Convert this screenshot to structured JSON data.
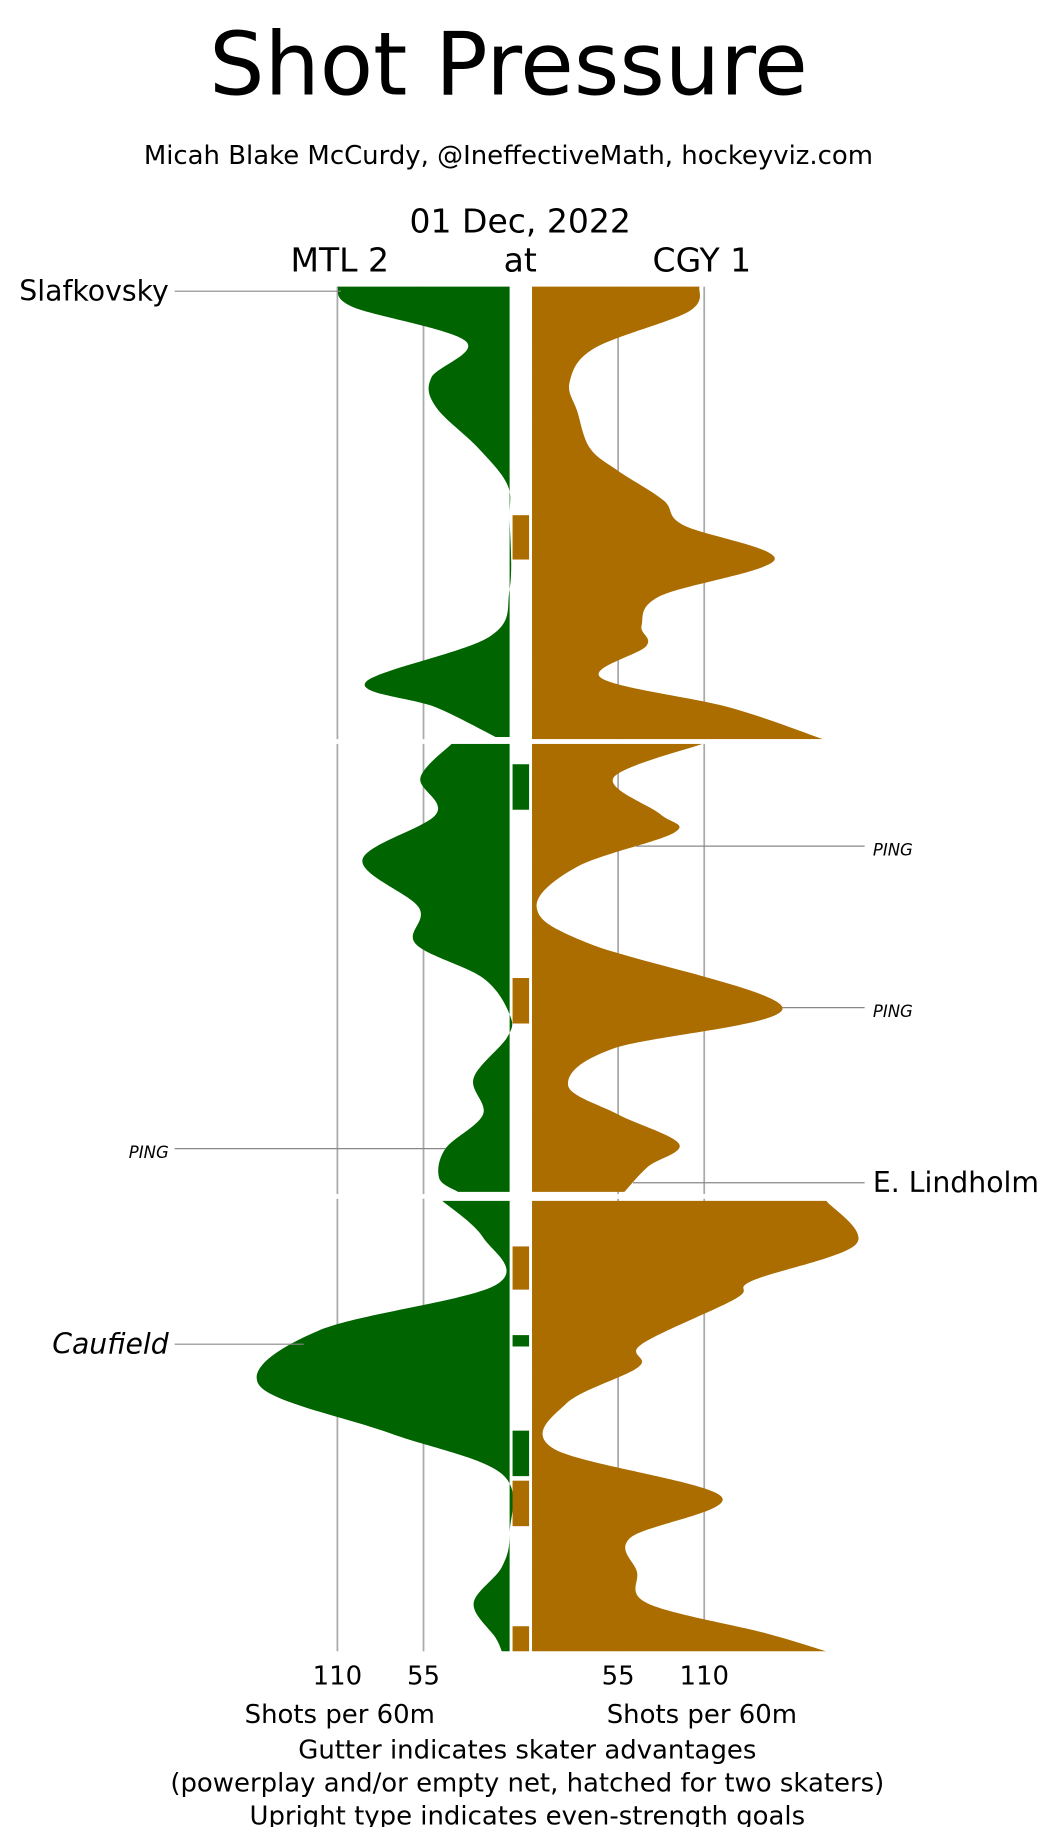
{
  "chart_data": {
    "type": "shot-pressure",
    "title": "Shot Pressure",
    "subtitle": "Micah Blake McCurdy, @IneffectiveMath, hockeyviz.com",
    "date": "01 Dec, 2022",
    "at_label": "at",
    "x_label": "Shots per 60m",
    "notes": [
      "Gutter indicates skater advantages",
      "(powerplay and/or empty net, hatched for two skaters)",
      "Upright type indicates even-strength goals"
    ],
    "xlim": [
      0,
      60
    ],
    "ylim": [
      0,
      220
    ],
    "yticks": [
      110,
      55
    ],
    "period_breaks": [
      20,
      40
    ],
    "series": [
      {
        "name": "MTL 2",
        "color": "#006400",
        "x": [
          0,
          0.9,
          2.4,
          4,
          5.3,
          7.1,
          8.7,
          10.2,
          13.3,
          15.4,
          17.4,
          18.5,
          19.8,
          20,
          20.1,
          21.6,
          23.2,
          25.2,
          27.3,
          28.9,
          30.4,
          32,
          33,
          34.8,
          36.4,
          37.9,
          39.2,
          39.8,
          40,
          40.2,
          41.8,
          43.9,
          45.9,
          48.3,
          50.4,
          52.2,
          54.8,
          56.3,
          57.9,
          59.4,
          60
        ],
        "values": [
          110,
          100,
          28,
          50,
          47,
          20,
          1.5,
          0,
          0,
          13,
          92,
          47,
          9,
          null,
          37,
          57,
          47,
          94,
          58,
          60,
          17,
          0,
          1.5,
          23,
          17,
          41,
          45,
          33,
          null,
          43,
          17,
          9,
          122,
          160,
          77,
          5,
          0,
          5,
          23,
          9,
          5
        ]
      },
      {
        "name": "CGY 1",
        "color": "#ab6c00",
        "x": [
          0,
          1.1,
          2.7,
          4.2,
          5.5,
          7.1,
          8.1,
          9.4,
          10.5,
          12,
          13.6,
          14.9,
          15.8,
          17.2,
          18.5,
          19.9,
          20,
          20.1,
          21.6,
          23.2,
          24,
          25.5,
          27.3,
          28.9,
          31.7,
          33.5,
          35.1,
          36.4,
          37.7,
          38.7,
          39.8,
          40,
          40.2,
          42.1,
          43.7,
          44.5,
          46.5,
          47.5,
          49.1,
          51.1,
          53.2,
          55,
          56.5,
          57.9,
          59.2,
          60
        ],
        "values": [
          107,
          100,
          40,
          24,
          29,
          37,
          55,
          84,
          97,
          155,
          82,
          70,
          73,
          44,
          126,
          186,
          null,
          109,
          52,
          82,
          91,
          29,
          3,
          37,
          160,
          52,
          23,
          55,
          94,
          74,
          59,
          null,
          188,
          207,
          141,
          130,
          70,
          68,
          22,
          14,
          121,
          63,
          67,
          74,
          149,
          188
        ]
      }
    ],
    "advantages": [
      {
        "start": 10.05,
        "end": 12,
        "color": "#ab6c00"
      },
      {
        "start": 21,
        "end": 23,
        "color": "#006400"
      },
      {
        "start": 30.4,
        "end": 32.4,
        "color": "#ab6c00"
      },
      {
        "start": 42.2,
        "end": 44.1,
        "color": "#ab6c00"
      },
      {
        "start": 46.1,
        "end": 46.6,
        "color": "#006400"
      },
      {
        "start": 50.3,
        "end": 52.3,
        "color": "#006400"
      },
      {
        "start": 52.5,
        "end": 54.5,
        "color": "#ab6c00"
      },
      {
        "start": 58.9,
        "end": 60,
        "color": "#ab6c00"
      }
    ],
    "goals": [
      {
        "name": "Slafkovsky",
        "time": 0.2,
        "series": 0,
        "even_strength": true
      },
      {
        "name": "PING",
        "time": 37.9,
        "series": 0,
        "even_strength": false
      },
      {
        "name": "Caufield",
        "time": 46.5,
        "series": 0,
        "even_strength": false
      },
      {
        "name": "PING",
        "time": 24.6,
        "series": 1,
        "even_strength": false
      },
      {
        "name": "PING",
        "time": 31.7,
        "series": 1,
        "even_strength": false
      },
      {
        "name": "E. Lindholm",
        "time": 39.4,
        "series": 1,
        "even_strength": true
      }
    ]
  }
}
